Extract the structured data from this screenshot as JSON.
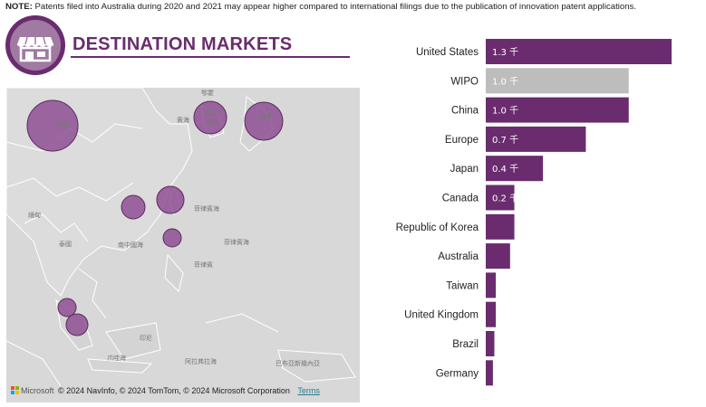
{
  "note": {
    "label": "NOTE:",
    "text": "Patents filed into Australia during 2020 and 2021 may appear higher compared to international filings due to the publication of innovation patent applications."
  },
  "header": {
    "icon": "storefront-icon",
    "title": "DESTINATION MARKETS"
  },
  "map": {
    "attribution": "© 2024 NavInfo, © 2024 TomTom, © 2024 Microsoft Corporation",
    "brand": "Microsoft",
    "terms_label": "Terms",
    "place_labels": [
      "鄂霍",
      "中国",
      "黄海",
      "韓國",
      "東海",
      "日本",
      "菲律賓海",
      "緬甸",
      "泰國",
      "南中國海",
      "菲律賓",
      "印尼",
      "爪哇海",
      "阿拉弗拉海",
      "巴布亞新幾內亞",
      "菲律賓海"
    ]
  },
  "chart_data": {
    "type": "bar",
    "orientation": "horizontal",
    "categories": [
      "United States",
      "WIPO",
      "China",
      "Europe",
      "Japan",
      "Canada",
      "Republic of Korea",
      "Australia",
      "Taiwan",
      "United Kingdom",
      "Brazil",
      "Germany"
    ],
    "values": [
      1.3,
      1.0,
      1.0,
      0.7,
      0.4,
      0.2,
      0.2,
      0.17,
      0.07,
      0.07,
      0.06,
      0.05
    ],
    "data_labels": [
      "1.3 千",
      "1.0 千",
      "1.0 千",
      "0.7 千",
      "0.4 千",
      "0.2 千",
      "",
      "",
      "",
      "",
      "",
      ""
    ],
    "unit": "千",
    "colors": [
      "#6a2c6e",
      "#bdbdbd",
      "#6a2c6e",
      "#6a2c6e",
      "#6a2c6e",
      "#6a2c6e",
      "#6a2c6e",
      "#6a2c6e",
      "#6a2c6e",
      "#6a2c6e",
      "#6a2c6e",
      "#6a2c6e"
    ],
    "xlim": [
      0,
      1.42
    ],
    "title": "",
    "xlabel": "",
    "ylabel": ""
  },
  "colors": {
    "accent": "#6a2c6e",
    "accent_light": "#a07aa3",
    "highlight_bar": "#bdbdbd",
    "map_land": "#d8d8d8",
    "bubble": "#8e4f93"
  }
}
